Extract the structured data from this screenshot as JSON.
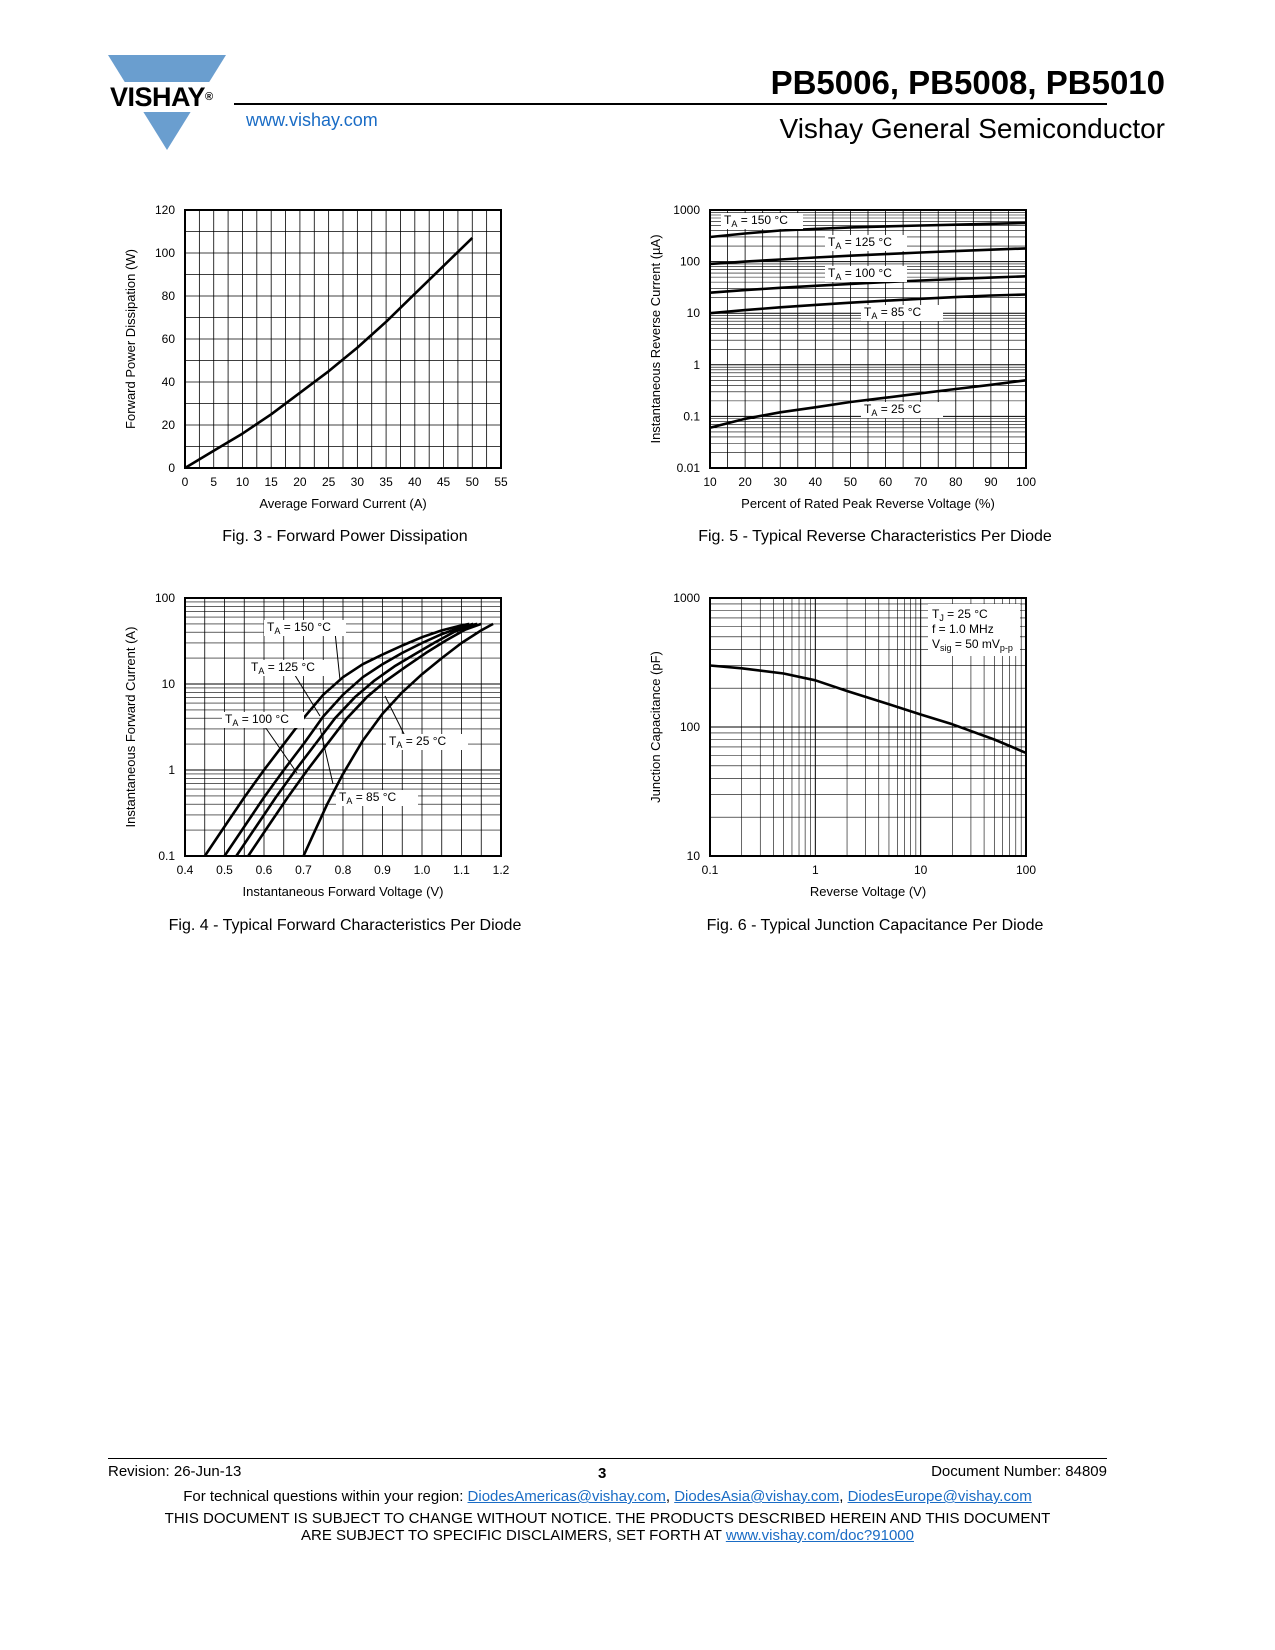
{
  "header": {
    "brand": "VISHAY",
    "trademark": "®",
    "website": "www.vishay.com",
    "title": "PB5006, PB5008, PB5010",
    "subtitle": "Vishay General Semiconductor"
  },
  "figures": {
    "fig3": {
      "caption": "Fig. 3 - Forward Power Dissipation"
    },
    "fig4": {
      "caption": "Fig. 4 - Typical Forward Characteristics Per Diode"
    },
    "fig5": {
      "caption": "Fig. 5 - Typical Reverse Characteristics Per Diode"
    },
    "fig6": {
      "caption": "Fig. 6 - Typical Junction Capacitance Per Diode"
    }
  },
  "chart_data": [
    {
      "id": "fig3",
      "type": "line",
      "title": "Fig. 3 - Forward Power Dissipation",
      "xlabel": "Average Forward Current (A)",
      "ylabel": "Forward Power Dissipation (W)",
      "xlim": [
        0,
        55
      ],
      "ylim": [
        0,
        120
      ],
      "xticks": [
        "0",
        "5",
        "10",
        "15",
        "20",
        "25",
        "30",
        "35",
        "40",
        "45",
        "50",
        "55"
      ],
      "yticks": [
        "0",
        "20",
        "40",
        "60",
        "80",
        "100",
        "120"
      ],
      "grid": true,
      "series": [
        {
          "name": "Power",
          "x": [
            0,
            5,
            10,
            15,
            20,
            25,
            30,
            35,
            40,
            45,
            50
          ],
          "y": [
            0,
            8,
            16,
            25,
            35,
            45,
            56,
            68,
            81,
            94,
            107
          ]
        }
      ]
    },
    {
      "id": "fig4",
      "type": "line",
      "scale": "semilog-y",
      "title": "Fig. 4 - Typical Forward Characteristics Per Diode",
      "xlabel": "Instantaneous Forward Voltage (V)",
      "ylabel": "Instantaneous Forward Current (A)",
      "xlim": [
        0.4,
        1.2
      ],
      "ylim": [
        0.1,
        100
      ],
      "xticks": [
        "0.4",
        "0.5",
        "0.6",
        "0.7",
        "0.8",
        "0.9",
        "1.0",
        "1.1",
        "1.2"
      ],
      "yticks": [
        "0.1",
        "1",
        "10",
        "100"
      ],
      "grid": true,
      "series": [
        {
          "name": "TA = 150 °C",
          "x": [
            0.45,
            0.5,
            0.55,
            0.6,
            0.65,
            0.7,
            0.75,
            0.8,
            0.85,
            0.9,
            0.95,
            1.0,
            1.05,
            1.1,
            1.12
          ],
          "y": [
            0.1,
            0.22,
            0.48,
            1.0,
            2.0,
            4.0,
            7.5,
            12,
            17,
            22,
            28,
            35,
            42,
            48,
            50
          ]
        },
        {
          "name": "TA = 125 °C",
          "x": [
            0.5,
            0.55,
            0.6,
            0.65,
            0.7,
            0.75,
            0.8,
            0.85,
            0.9,
            0.95,
            1.0,
            1.05,
            1.1,
            1.13
          ],
          "y": [
            0.1,
            0.22,
            0.48,
            1.0,
            2.0,
            4.2,
            7.5,
            12,
            17,
            23,
            30,
            38,
            46,
            50
          ]
        },
        {
          "name": "TA = 100 °C",
          "x": [
            0.53,
            0.58,
            0.63,
            0.68,
            0.73,
            0.78,
            0.83,
            0.88,
            0.93,
            0.98,
            1.03,
            1.08,
            1.13,
            1.14
          ],
          "y": [
            0.1,
            0.22,
            0.48,
            1.0,
            2.0,
            4.0,
            7.0,
            11,
            16,
            22,
            30,
            40,
            49,
            50
          ]
        },
        {
          "name": "TA = 85 °C",
          "x": [
            0.56,
            0.61,
            0.66,
            0.71,
            0.76,
            0.81,
            0.86,
            0.91,
            0.96,
            1.01,
            1.06,
            1.11,
            1.15
          ],
          "y": [
            0.1,
            0.22,
            0.48,
            1.0,
            2.0,
            4.0,
            7.0,
            11,
            16,
            23,
            32,
            43,
            50
          ]
        },
        {
          "name": "TA = 25 °C",
          "x": [
            0.7,
            0.73,
            0.76,
            0.8,
            0.85,
            0.9,
            0.95,
            1.0,
            1.05,
            1.1,
            1.15,
            1.18
          ],
          "y": [
            0.1,
            0.2,
            0.4,
            0.9,
            2.2,
            4.5,
            8,
            13,
            20,
            30,
            42,
            50
          ]
        }
      ]
    },
    {
      "id": "fig5",
      "type": "line",
      "scale": "semilog-y",
      "title": "Fig. 5 - Typical Reverse Characteristics Per Diode",
      "xlabel": "Percent of Rated Peak Reverse Voltage (%)",
      "ylabel": "Instantaneous Reverse Current (µA)",
      "xlim": [
        10,
        100
      ],
      "ylim": [
        0.01,
        1000
      ],
      "xticks": [
        "10",
        "20",
        "30",
        "40",
        "50",
        "60",
        "70",
        "80",
        "90",
        "100"
      ],
      "yticks": [
        "0.01",
        "0.1",
        "1",
        "10",
        "100",
        "1000"
      ],
      "grid": true,
      "series": [
        {
          "name": "TA = 150 °C",
          "x": [
            10,
            20,
            30,
            40,
            50,
            60,
            70,
            80,
            90,
            100
          ],
          "y": [
            300,
            350,
            400,
            430,
            460,
            480,
            500,
            520,
            540,
            560
          ]
        },
        {
          "name": "TA = 125 °C",
          "x": [
            10,
            20,
            30,
            40,
            50,
            60,
            70,
            80,
            90,
            100
          ],
          "y": [
            90,
            100,
            110,
            120,
            130,
            140,
            150,
            160,
            170,
            180
          ]
        },
        {
          "name": "TA = 100 °C",
          "x": [
            10,
            20,
            30,
            40,
            50,
            60,
            70,
            80,
            90,
            100
          ],
          "y": [
            25,
            28,
            31,
            34,
            37,
            40,
            43,
            46,
            49,
            52
          ]
        },
        {
          "name": "TA = 85 °C",
          "x": [
            10,
            20,
            30,
            40,
            50,
            60,
            70,
            80,
            90,
            100
          ],
          "y": [
            10,
            11.5,
            13,
            14.5,
            16,
            17.5,
            19,
            20.5,
            22,
            23
          ]
        },
        {
          "name": "TA = 25 °C",
          "x": [
            10,
            20,
            30,
            40,
            50,
            60,
            70,
            80,
            90,
            100
          ],
          "y": [
            0.06,
            0.09,
            0.12,
            0.15,
            0.19,
            0.23,
            0.28,
            0.34,
            0.41,
            0.5
          ]
        }
      ]
    },
    {
      "id": "fig6",
      "type": "line",
      "scale": "log-log",
      "title": "Fig. 6 - Typical Junction Capacitance Per Diode",
      "xlabel": "Reverse Voltage (V)",
      "ylabel": "Junction Capacitance (pF)",
      "xlim": [
        0.1,
        100
      ],
      "ylim": [
        10,
        1000
      ],
      "xticks": [
        "0.1",
        "1",
        "10",
        "100"
      ],
      "yticks": [
        "10",
        "100",
        "1000"
      ],
      "grid": true,
      "legend_lines": [
        "TJ = 25 °C",
        "f = 1.0 MHz",
        "Vsig = 50 mVp-p"
      ],
      "series": [
        {
          "name": "Capacitance",
          "x": [
            0.1,
            0.2,
            0.5,
            1,
            2,
            5,
            10,
            20,
            50,
            100
          ],
          "y": [
            300,
            285,
            260,
            230,
            190,
            150,
            125,
            105,
            80,
            63
          ]
        }
      ]
    }
  ],
  "labels": {
    "fig4": [
      "T",
      "A",
      " = 150 °C",
      "T",
      "A",
      " = 125 °C",
      "T",
      "A",
      " = 100 °C",
      "T",
      "A",
      " = 85 °C",
      "T",
      "A",
      " = 25 °C"
    ],
    "fig5": [
      "T",
      "A",
      " = 150 °C",
      "T",
      "A",
      " = 125 °C",
      "T",
      "A",
      " = 100 °C",
      "T",
      "A",
      " = 85 °C",
      "T",
      "A",
      " = 25 °C"
    ],
    "fig6": [
      "T",
      "J",
      " = 25 °C",
      "f = 1.0 MHz",
      "V",
      "sig",
      " = 50 mV",
      "p-p"
    ]
  },
  "footer": {
    "revision": "Revision: 26-Jun-13",
    "page_number": "3",
    "document_number": "Document Number: 84809",
    "questions_prefix": "For technical questions within your region: ",
    "email_americas": "DiodesAmericas@vishay.com",
    "sep1": ", ",
    "email_asia": "DiodesAsia@vishay.com",
    "sep2": ", ",
    "email_europe": "DiodesEurope@vishay.com",
    "disclaimer_line1": "THIS DOCUMENT IS SUBJECT TO CHANGE WITHOUT NOTICE. THE PRODUCTS DESCRIBED HEREIN AND THIS DOCUMENT",
    "disclaimer_line2_prefix": "ARE SUBJECT TO SPECIFIC DISCLAIMERS, SET FORTH AT ",
    "disclaimer_link": "www.vishay.com/doc?91000"
  },
  "colors": {
    "link": "#1a6cc5",
    "logo": "#6a9ecf"
  }
}
